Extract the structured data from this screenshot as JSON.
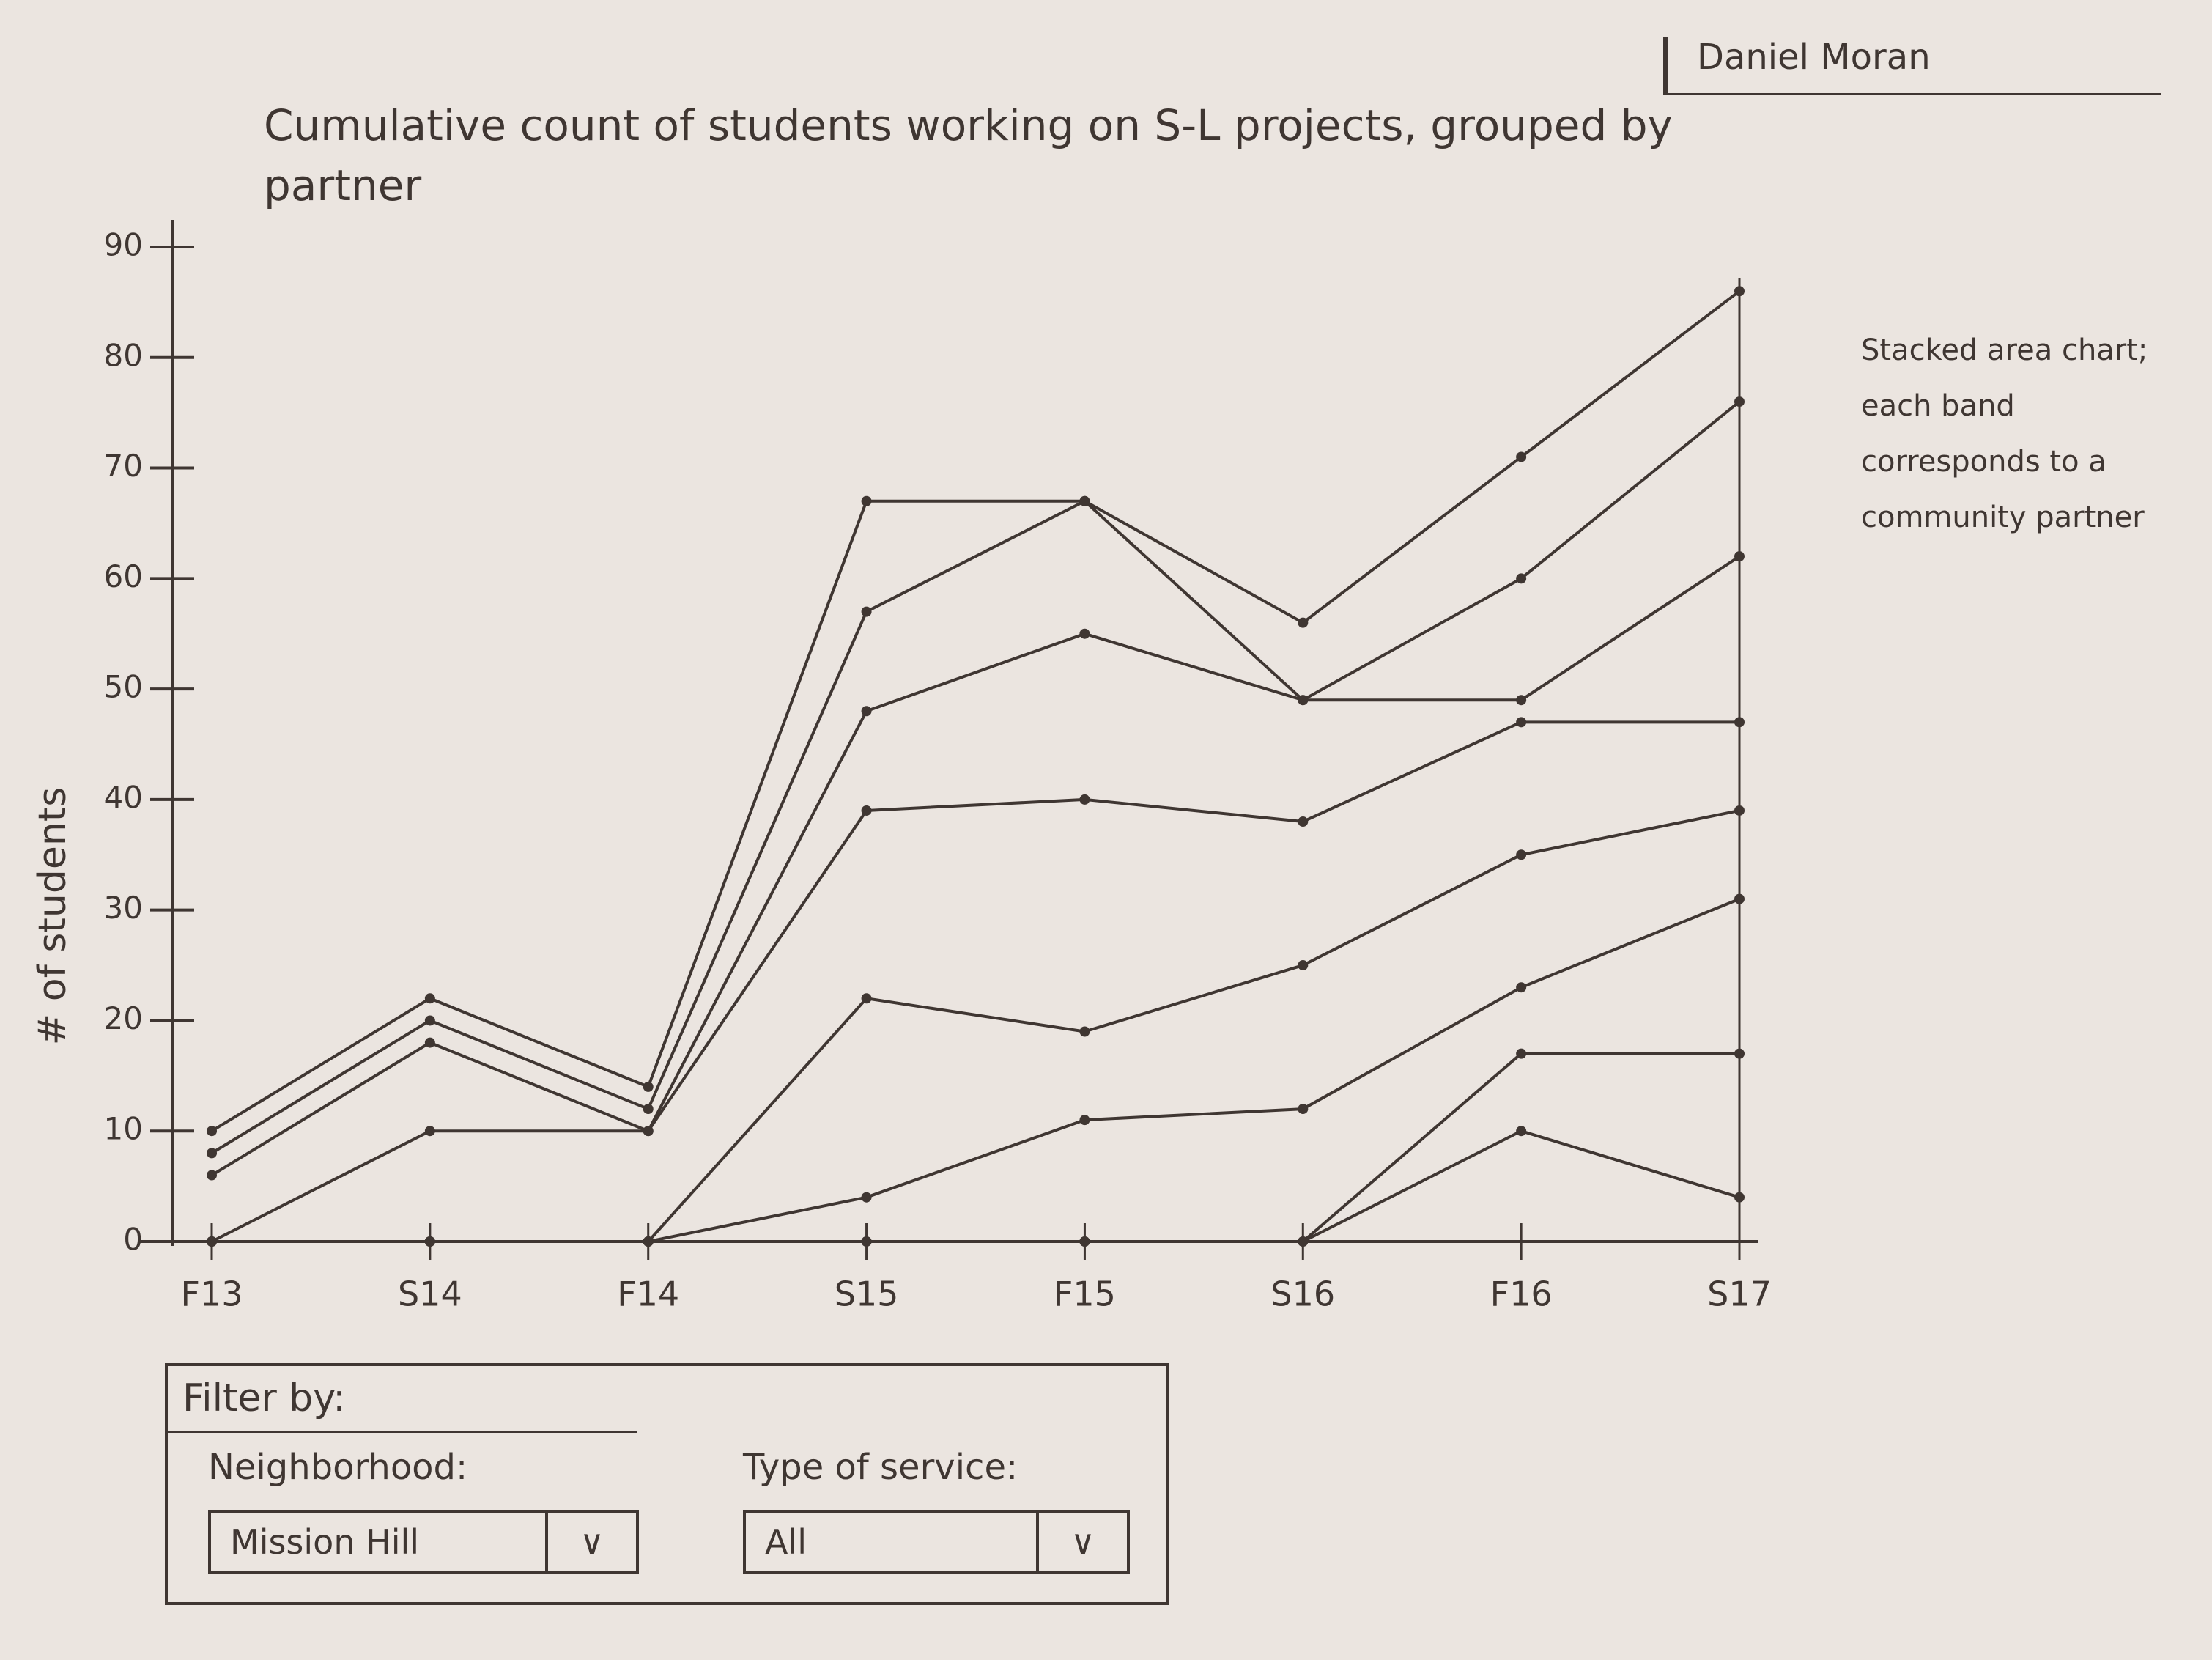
{
  "header": {
    "author": "Daniel Moran"
  },
  "chart_data": {
    "type": "stacked-area",
    "title": "Cumulative count of students working on S-L projects, grouped by partner",
    "y_label": "# of students",
    "annotation": "Stacked area chart; each band corresponds to a community partner",
    "categories": [
      "F13",
      "S14",
      "F14",
      "S15",
      "F15",
      "S16",
      "F16",
      "S17"
    ],
    "series": [
      {
        "color": "#3f3632",
        "values": [
          0,
          0,
          0,
          0,
          0,
          0,
          10,
          4
        ]
      },
      {
        "color": "#3f3632",
        "values": [
          0,
          0,
          0,
          0,
          0,
          0,
          7,
          13
        ]
      },
      {
        "color": "#3f3632",
        "values": [
          0,
          0,
          0,
          4,
          11,
          12,
          6,
          14
        ]
      },
      {
        "color": "#3f3632",
        "values": [
          0,
          0,
          0,
          18,
          8,
          13,
          12,
          8
        ]
      },
      {
        "color": "#3f3632",
        "values": [
          0,
          10,
          10,
          17,
          21,
          13,
          12,
          8
        ]
      },
      {
        "color": "#3f3632",
        "values": [
          6,
          8,
          0,
          9,
          15,
          11,
          2,
          15
        ]
      },
      {
        "color": "#3f3632",
        "values": [
          2,
          2,
          2,
          9,
          12,
          0,
          11,
          14
        ]
      },
      {
        "color": "#3f3632",
        "values": [
          2,
          2,
          2,
          10,
          0,
          7,
          11,
          10
        ]
      }
    ],
    "ylim": [
      0,
      90
    ],
    "yticks": [
      0,
      10,
      20,
      30,
      40,
      50,
      60,
      70,
      80,
      90
    ],
    "grid": false
  },
  "filter": {
    "title": "Filter by:",
    "fields": [
      {
        "label": "Neighborhood:",
        "value": "Mission Hill"
      },
      {
        "label": "Type of service:",
        "value": "All"
      }
    ]
  }
}
